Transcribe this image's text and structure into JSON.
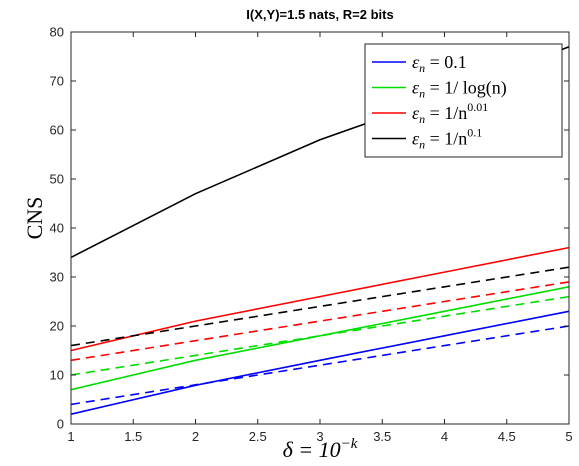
{
  "chart_data": {
    "type": "line",
    "title": "I(X,Y)=1.5 nats, R=2 bits",
    "xlabel": "δ = 10",
    "xlabel_sup": "−k",
    "ylabel": "CNS",
    "xlim": [
      1,
      5
    ],
    "ylim": [
      0,
      80
    ],
    "xticks": [
      1,
      1.5,
      2,
      2.5,
      3,
      3.5,
      4,
      4.5,
      5
    ],
    "xtick_labels": [
      "1",
      "1.5",
      "2",
      "2.5",
      "3",
      "3.5",
      "4",
      "4.5",
      "5"
    ],
    "yticks": [
      0,
      10,
      20,
      30,
      40,
      50,
      60,
      70,
      80
    ],
    "ytick_labels": [
      "0",
      "10",
      "20",
      "30",
      "40",
      "50",
      "60",
      "70",
      "80"
    ],
    "grid": false,
    "legend_position": "top-right",
    "x": [
      1,
      2,
      3,
      4,
      5
    ],
    "legend": [
      {
        "color": "#0000ff",
        "lhs": "ε",
        "sub": "n",
        "rhs": " = 0.1",
        "sup": ""
      },
      {
        "color": "#00dd00",
        "lhs": "ε",
        "sub": "n",
        "rhs": " = 1/ log(n)",
        "sup": ""
      },
      {
        "color": "#ff0000",
        "lhs": "ε",
        "sub": "n",
        "rhs": " = 1/n",
        "sup": "0.01"
      },
      {
        "color": "#000000",
        "lhs": "ε",
        "sub": "n",
        "rhs": " = 1/n",
        "sup": "0.1"
      }
    ],
    "series": [
      {
        "color": "#0000ff",
        "style": "solid",
        "values": [
          2,
          7.9,
          13,
          18,
          23
        ]
      },
      {
        "color": "#0000ff",
        "style": "dashed",
        "values": [
          4,
          8,
          12,
          16,
          20
        ]
      },
      {
        "color": "#00dd00",
        "style": "solid",
        "values": [
          7,
          13,
          18,
          23,
          28
        ]
      },
      {
        "color": "#00dd00",
        "style": "dashed",
        "values": [
          10,
          14,
          18,
          22,
          26
        ]
      },
      {
        "color": "#ff0000",
        "style": "solid",
        "values": [
          15,
          21,
          26,
          31,
          36
        ]
      },
      {
        "color": "#ff0000",
        "style": "dashed",
        "values": [
          13,
          17,
          21,
          25,
          29
        ]
      },
      {
        "color": "#000000",
        "style": "solid",
        "values": [
          34,
          47,
          58,
          67,
          77
        ]
      },
      {
        "color": "#000000",
        "style": "dashed",
        "values": [
          16,
          20,
          24,
          28,
          32
        ]
      }
    ]
  }
}
